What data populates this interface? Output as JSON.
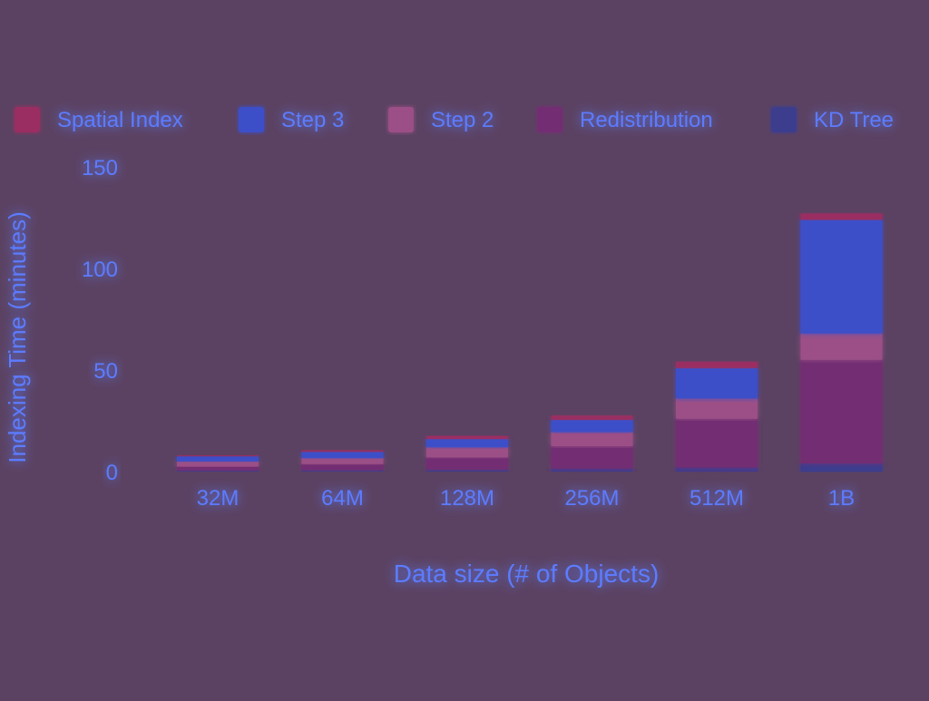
{
  "colors": {
    "background": "#5b4262",
    "text": "#5c7cff",
    "gridline": "#4c57c6",
    "glow": "#5a7dff"
  },
  "chart_data": {
    "type": "bar",
    "stacked": true,
    "title": "",
    "xlabel": "Data size (# of Objects)",
    "ylabel": "Indexing Time (minutes)",
    "ylim": [
      0,
      150
    ],
    "yticks": [
      0,
      50,
      100,
      150
    ],
    "grid": true,
    "legend_position": "top",
    "categories": [
      "32M",
      "64M",
      "128M",
      "256M",
      "512M",
      "1B"
    ],
    "series": [
      {
        "name": "KD Tree",
        "color": "#3e3d8e",
        "values": [
          0.5,
          0.7,
          1,
          1.5,
          2,
          4
        ]
      },
      {
        "name": "Redistribution",
        "color": "#732f73",
        "values": [
          2,
          3,
          6,
          11,
          24,
          51
        ]
      },
      {
        "name": "Step 2",
        "color": "#9b4f86",
        "values": [
          2.5,
          3,
          5,
          7,
          10,
          13
        ]
      },
      {
        "name": "Step 3",
        "color": "#3c4fc8",
        "values": [
          2.5,
          3,
          4,
          6,
          15,
          56
        ]
      },
      {
        "name": "Spatial Index",
        "color": "#9a2f62",
        "values": [
          0.5,
          0.8,
          1.5,
          2,
          3,
          3
        ]
      }
    ],
    "legend_order": [
      "Spatial Index",
      "Step 3",
      "Step 2",
      "Redistribution",
      "KD Tree"
    ]
  }
}
